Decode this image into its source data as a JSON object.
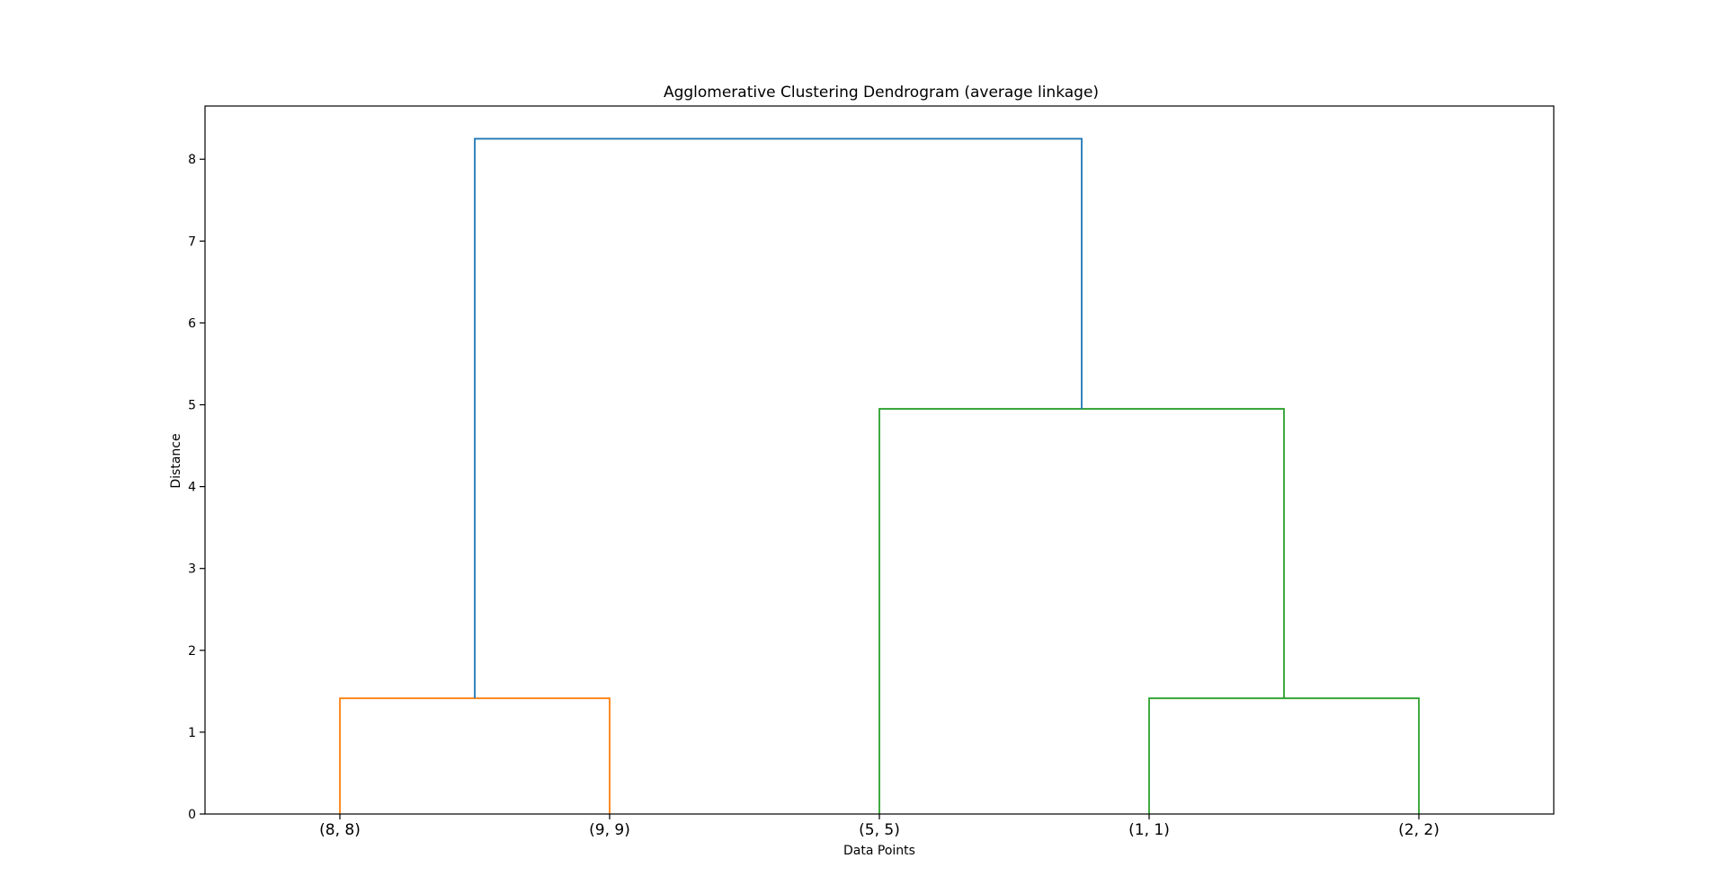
{
  "chart_data": {
    "type": "dendrogram",
    "title": "Agglomerative Clustering Dendrogram (average linkage)",
    "xlabel": "Data Points",
    "ylabel": "Distance",
    "ylim": [
      0,
      8.65
    ],
    "yticks": [
      0,
      1,
      2,
      3,
      4,
      5,
      6,
      7,
      8
    ],
    "grid": false,
    "leaves": [
      "(8, 8)",
      "(9, 9)",
      "(5, 5)",
      "(1, 1)",
      "(2, 2)"
    ],
    "links": [
      {
        "left": "(8, 8)",
        "right": "(9, 9)",
        "height": 1.414,
        "color": "#ff7f0e"
      },
      {
        "left": "(1, 1)",
        "right": "(2, 2)",
        "height": 1.414,
        "color": "#2ca02c"
      },
      {
        "left": "(5, 5)",
        "right": "{(1, 1), (2, 2)}",
        "height": 4.95,
        "color": "#2ca02c"
      },
      {
        "left": "{(8, 8), (9, 9)}",
        "right": "{(5, 5), (1, 1), (2, 2)}",
        "height": 8.25,
        "color": "#1f77b4"
      }
    ]
  }
}
